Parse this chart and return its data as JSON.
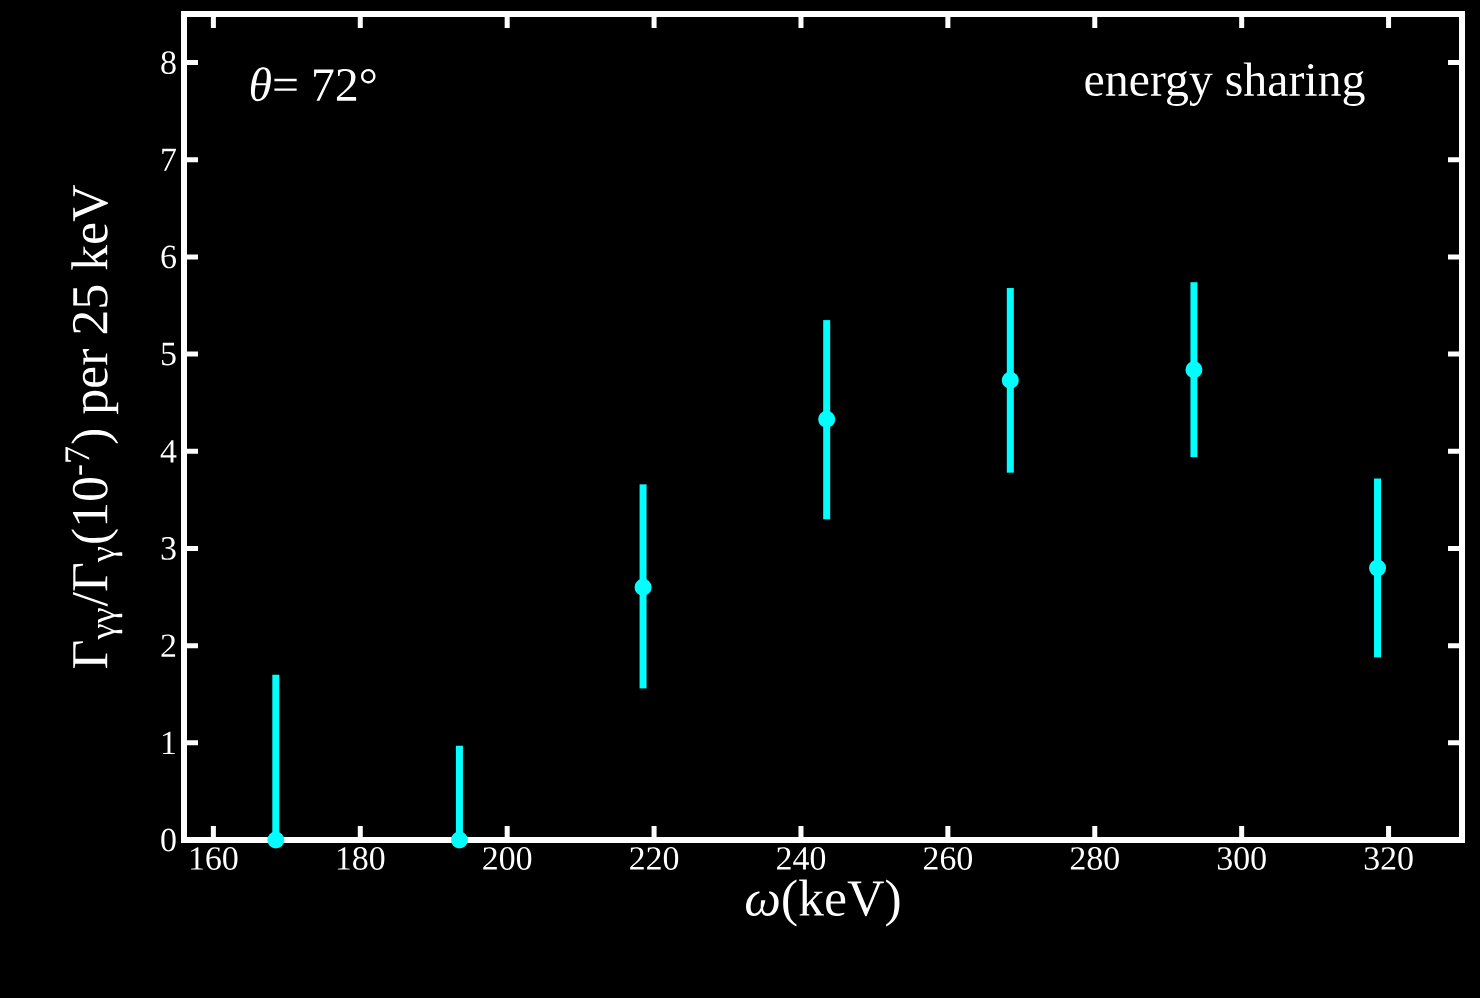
{
  "chart_data": {
    "type": "scatter",
    "xlabel": "*ω*(keV)",
    "ylabel": "Γ$_{γγ}$/Γ$_{γ}$(10$^{-7}$) per 25 keV",
    "annotations": [
      "*θ*= 72°",
      "energy sharing"
    ],
    "x": [
      168.5,
      193.5,
      218.5,
      243.5,
      268.5,
      293.5,
      318.5
    ],
    "values": [
      0,
      0,
      2.6,
      4.33,
      4.73,
      4.84,
      2.8
    ],
    "errors": [
      [
        0,
        1.7
      ],
      [
        0,
        0.97
      ],
      [
        1.56,
        3.66
      ],
      [
        3.3,
        5.35
      ],
      [
        3.78,
        5.68
      ],
      [
        3.94,
        5.74
      ],
      [
        1.88,
        3.72
      ]
    ],
    "color": "#00ffff",
    "marker": "circle",
    "xlim": [
      156,
      330
    ],
    "ylim": [
      0,
      8.5
    ],
    "xticks": [
      160,
      180,
      200,
      220,
      240,
      260,
      280,
      300,
      320
    ],
    "yticks": [
      0,
      1,
      2,
      3,
      4,
      5,
      6,
      7,
      8
    ]
  }
}
